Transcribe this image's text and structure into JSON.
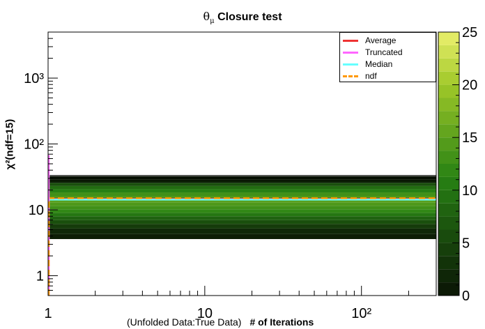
{
  "title": {
    "symbol": "θ",
    "subscript": "μ",
    "text": "Closure test"
  },
  "x_axis": {
    "prefix": "(Unfolded Data:True Data)",
    "label": "# of Iterations"
  },
  "y_axis": {
    "label": "χ²(ndf=15)"
  },
  "legend": [
    {
      "label": "Average",
      "color": "#ee3333",
      "style": "solid"
    },
    {
      "label": "Truncated",
      "color": "#ff66ff",
      "style": "solid"
    },
    {
      "label": "Median",
      "color": "#66ffff",
      "style": "solid"
    },
    {
      "label": "ndf",
      "color": "#ff9900",
      "style": "dashed"
    }
  ],
  "chart_data": {
    "type": "heatmap",
    "title": "θμ Closure test",
    "xlabel": "(Unfolded Data:True Data)   # of Iterations",
    "ylabel": "χ²(ndf=15)",
    "x_scale": "log",
    "y_scale": "log",
    "xlim": [
      1,
      300
    ],
    "ylim": [
      0.5,
      5000
    ],
    "x_ticks": [
      "1",
      "10",
      "10²"
    ],
    "y_ticks": [
      "1",
      "10",
      "10²",
      "10³"
    ],
    "z_range": [
      0,
      25
    ],
    "z_ticks": [
      "0",
      "5",
      "10",
      "15",
      "20",
      "25"
    ],
    "chi2_bins": [
      {
        "low": 3.6,
        "high": 4.3,
        "count": 1
      },
      {
        "low": 4.3,
        "high": 5.2,
        "count": 2
      },
      {
        "low": 5.2,
        "high": 6.1,
        "count": 4
      },
      {
        "low": 6.1,
        "high": 7.0,
        "count": 6
      },
      {
        "low": 7.0,
        "high": 8.0,
        "count": 8
      },
      {
        "low": 8.0,
        "high": 9.0,
        "count": 10
      },
      {
        "low": 9.0,
        "high": 10.2,
        "count": 12
      },
      {
        "low": 10.2,
        "high": 11.5,
        "count": 13
      },
      {
        "low": 11.5,
        "high": 13.0,
        "count": 14
      },
      {
        "low": 13.0,
        "high": 14.5,
        "count": 15
      },
      {
        "low": 14.5,
        "high": 16.3,
        "count": 14
      },
      {
        "low": 16.3,
        "high": 18.4,
        "count": 13
      },
      {
        "low": 18.4,
        "high": 20.5,
        "count": 11
      },
      {
        "low": 20.5,
        "high": 23.0,
        "count": 9
      },
      {
        "low": 23.0,
        "high": 25.8,
        "count": 6
      },
      {
        "low": 25.8,
        "high": 28.8,
        "count": 3
      },
      {
        "low": 28.8,
        "high": 32.5,
        "count": 1
      }
    ],
    "series": [
      {
        "name": "Average",
        "x": [
          1,
          300
        ],
        "y": [
          14.6,
          14.6
        ]
      },
      {
        "name": "Truncated",
        "x": [
          1,
          300
        ],
        "y": [
          14.4,
          14.4
        ]
      },
      {
        "name": "Median",
        "x": [
          1,
          300
        ],
        "y": [
          14.3,
          14.3
        ]
      },
      {
        "name": "ndf",
        "x": [
          1,
          300
        ],
        "y": [
          15,
          15
        ]
      }
    ],
    "grid": false,
    "legend_position": "top-right"
  }
}
